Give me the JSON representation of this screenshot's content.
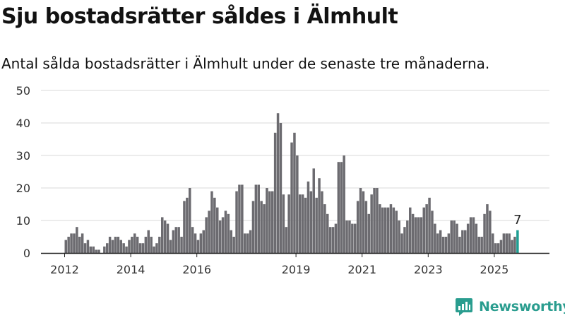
{
  "title": "Sju bostadsrätter såldes i Älmhult",
  "subtitle": "Antal sålda bostadsrätter i Älmhult under de senaste tre månaderna.",
  "brand": {
    "name": "Newsworthy",
    "icon": "newsworthy-logo-icon"
  },
  "colors": {
    "bar": "#6c6b70",
    "highlight": "#1e9e93",
    "grid": "#d9d9d9",
    "axis": "#222222",
    "brand": "#2a9d8f"
  },
  "chart_data": {
    "type": "bar",
    "title": "",
    "xlabel": "",
    "ylabel": "",
    "ylim": [
      0,
      50
    ],
    "yticks": [
      "0",
      "10",
      "20",
      "30",
      "40",
      "50"
    ],
    "grid": true,
    "x_start": "2012-01",
    "xticks": [
      "2012",
      "2014",
      "2016",
      "2019",
      "2021",
      "2023",
      "2025"
    ],
    "highlight_label": "7",
    "values": [
      4,
      5,
      6,
      6,
      8,
      5,
      6,
      3,
      4,
      2,
      2,
      1,
      1,
      0,
      2,
      3,
      5,
      4,
      5,
      5,
      4,
      3,
      2,
      4,
      5,
      6,
      5,
      3,
      3,
      5,
      7,
      5,
      2,
      3,
      5,
      11,
      10,
      9,
      4,
      7,
      8,
      8,
      5,
      16,
      17,
      20,
      8,
      6,
      4,
      6,
      7,
      11,
      13,
      19,
      17,
      14,
      10,
      11,
      13,
      12,
      7,
      5,
      19,
      21,
      21,
      6,
      6,
      7,
      16,
      21,
      21,
      16,
      15,
      20,
      19,
      19,
      37,
      43,
      40,
      18,
      8,
      18,
      34,
      37,
      30,
      18,
      18,
      17,
      22,
      19,
      26,
      17,
      23,
      19,
      15,
      12,
      8,
      8,
      9,
      28,
      28,
      30,
      10,
      10,
      9,
      9,
      16,
      20,
      19,
      16,
      12,
      18,
      20,
      20,
      15,
      14,
      14,
      14,
      15,
      14,
      13,
      10,
      6,
      8,
      10,
      14,
      12,
      11,
      11,
      11,
      14,
      15,
      17,
      13,
      9,
      6,
      7,
      5,
      5,
      6,
      10,
      10,
      9,
      5,
      7,
      7,
      9,
      11,
      11,
      9,
      5,
      5,
      12,
      15,
      13,
      6,
      3,
      3,
      4,
      6,
      6,
      6,
      4,
      5,
      7
    ]
  }
}
